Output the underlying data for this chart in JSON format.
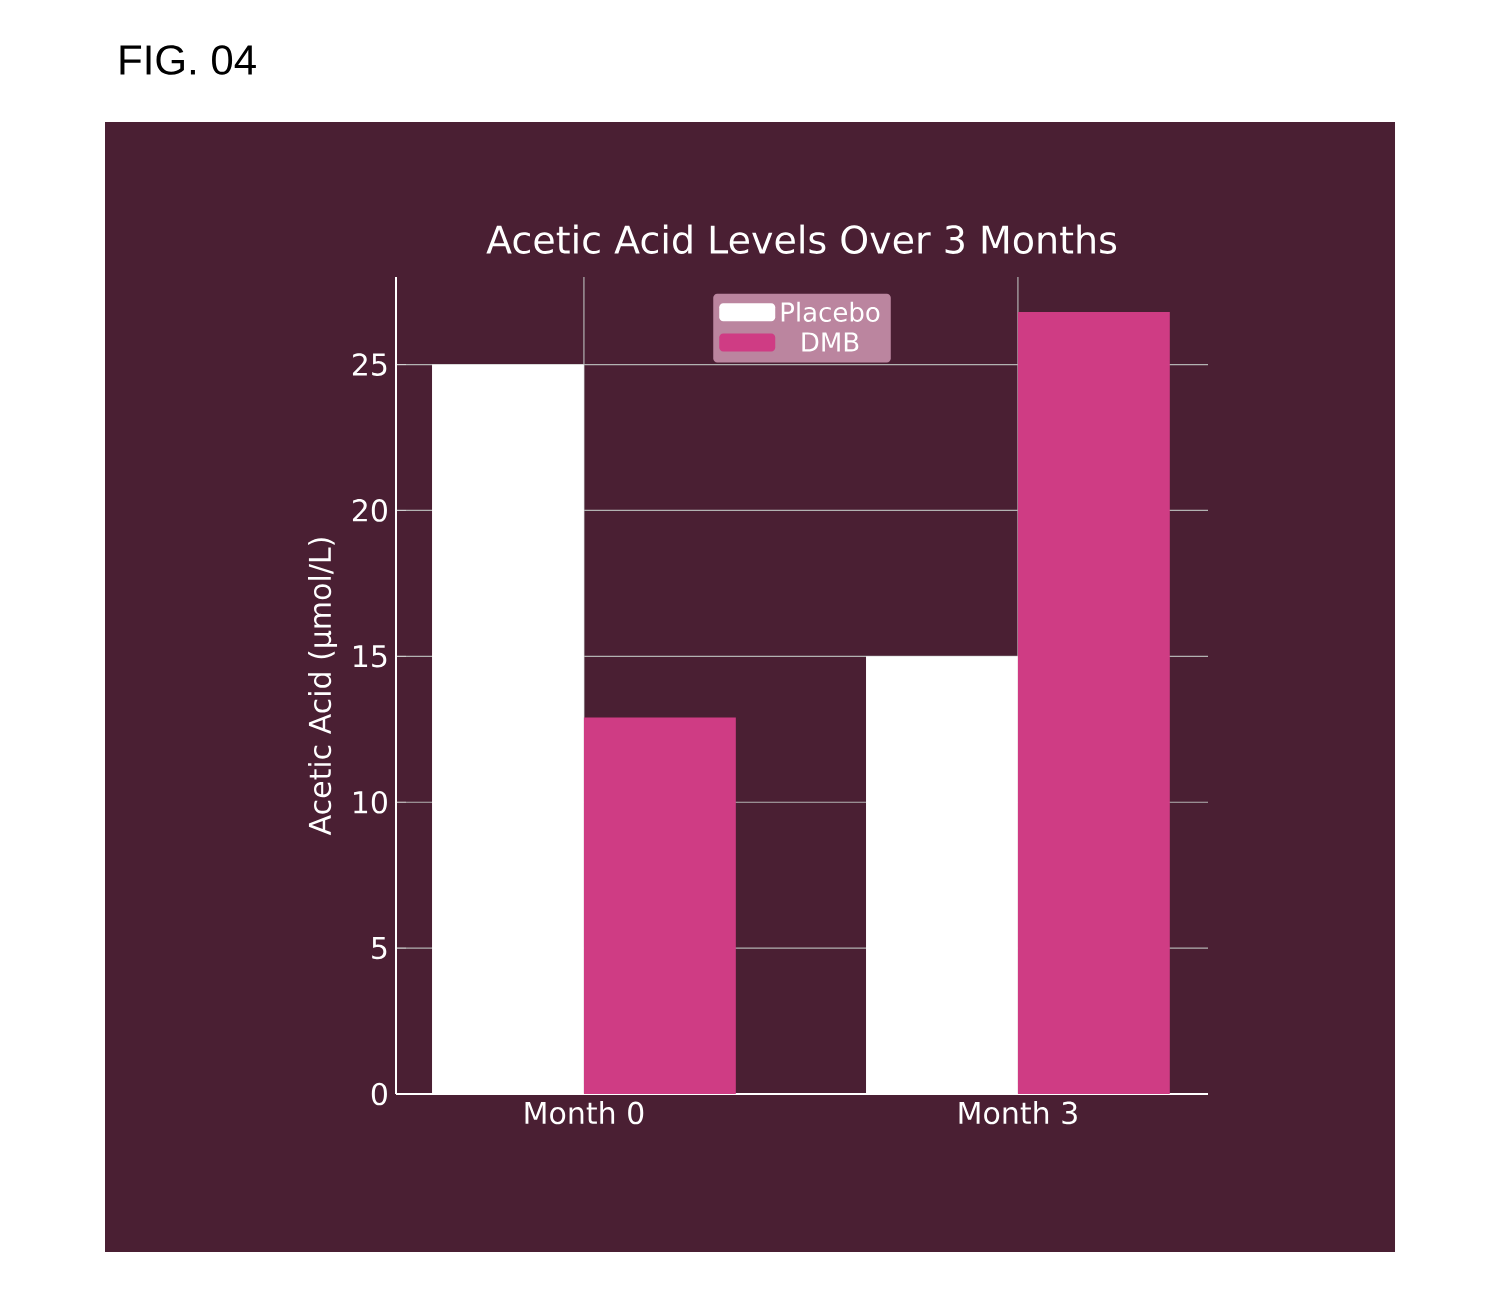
{
  "chart_data": {
    "type": "bar",
    "title": "Acetic Acid Levels Over 3 Months",
    "ylabel": "Acetic Acid (µmol/L)",
    "annotations": [
      "FIG. 04"
    ],
    "categories": [
      "Month 0",
      "Month 3"
    ],
    "series": [
      {
        "name": "Placebo",
        "color": "#ffffff",
        "values": [
          25,
          15
        ]
      },
      {
        "name": "DMB",
        "color": "#cf3c84",
        "values": [
          12.9,
          26.8
        ]
      }
    ],
    "ylim": [
      0,
      28
    ],
    "yticks": [
      0,
      5,
      10,
      15,
      20,
      25
    ],
    "grid": true,
    "legend": "top"
  }
}
